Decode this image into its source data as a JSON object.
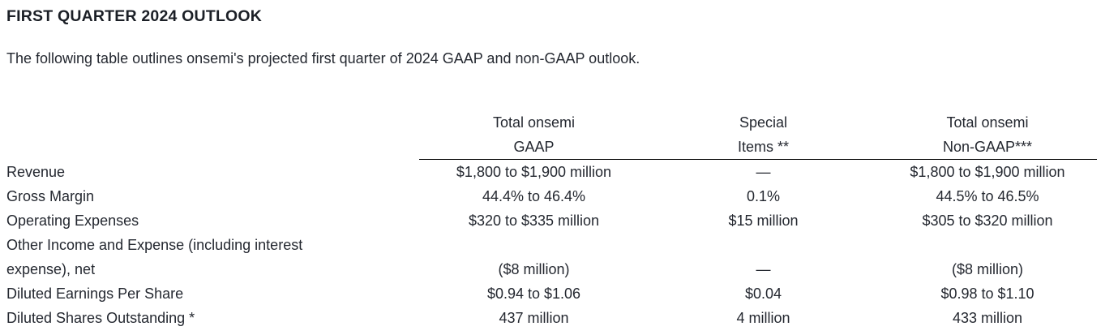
{
  "page": {
    "title": "FIRST QUARTER 2024 OUTLOOK",
    "intro": "The following table outlines onsemi's projected first quarter of 2024 GAAP and non-GAAP outlook."
  },
  "colors": {
    "background": "#ffffff",
    "text": "#242830",
    "heading": "#1b1f26",
    "header_rule": "#000000"
  },
  "table": {
    "columns": [
      {
        "line1": "Total onsemi",
        "line2": "GAAP"
      },
      {
        "line1": "Special",
        "line2": "Items **"
      },
      {
        "line1": "Total onsemi",
        "line2": "Non-GAAP***"
      }
    ],
    "rows": [
      {
        "label": "Revenue",
        "gaap": "$1,800 to $1,900 million",
        "special": "—",
        "non_gaap": "$1,800 to $1,900 million"
      },
      {
        "label": "Gross Margin",
        "gaap": "44.4% to 46.4%",
        "special": "0.1%",
        "non_gaap": "44.5% to 46.5%"
      },
      {
        "label": "Operating Expenses",
        "gaap": "$320 to $335 million",
        "special": "$15 million",
        "non_gaap": "$305 to $320 million"
      },
      {
        "label_line1": "Other Income and Expense (including interest",
        "label_line2": "expense), net",
        "gaap": "($8 million)",
        "special": "—",
        "non_gaap": "($8 million)"
      },
      {
        "label": "Diluted Earnings Per Share",
        "gaap": "$0.94 to $1.06",
        "special": "$0.04",
        "non_gaap": "$0.98 to $1.10"
      },
      {
        "label": "Diluted Shares Outstanding *",
        "gaap": "437 million",
        "special": "4 million",
        "non_gaap": "433 million"
      }
    ]
  }
}
